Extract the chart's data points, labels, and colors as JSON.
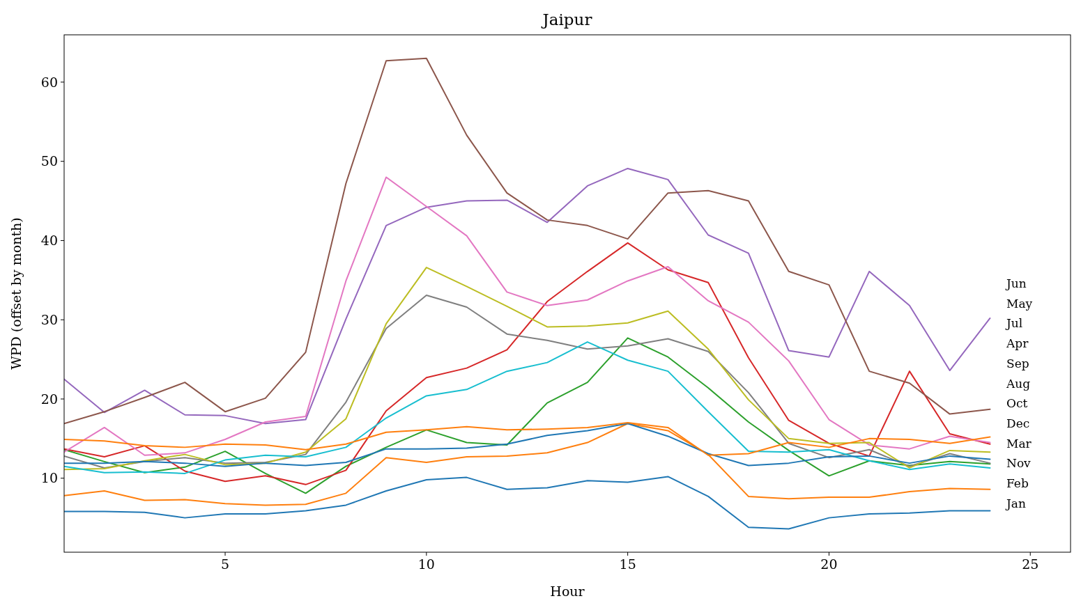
{
  "chart_data": {
    "type": "line",
    "title": "Jaipur",
    "xlabel": "Hour",
    "ylabel": "WPD (offset by month)",
    "x": [
      1,
      2,
      3,
      4,
      5,
      6,
      7,
      8,
      9,
      10,
      11,
      12,
      13,
      14,
      15,
      16,
      17,
      18,
      19,
      20,
      21,
      22,
      23,
      24
    ],
    "xlim": [
      1,
      26
    ],
    "xticks": [
      5,
      10,
      15,
      20,
      25
    ],
    "ylim": [
      0.66,
      65.97
    ],
    "yticks": [
      10,
      20,
      30,
      40,
      50,
      60
    ],
    "series": [
      {
        "color": "#1f77b4",
        "values": [
          5.8,
          5.8,
          5.7,
          5.0,
          5.5,
          5.5,
          5.9,
          6.6,
          8.4,
          9.8,
          10.1,
          8.6,
          8.8,
          9.7,
          9.5,
          10.2,
          7.7,
          3.8,
          3.6,
          5.0,
          5.5,
          5.6,
          5.9,
          5.9
        ]
      },
      {
        "color": "#ff7f0e",
        "values": [
          7.8,
          8.4,
          7.2,
          7.3,
          6.8,
          6.6,
          6.7,
          8.1,
          12.6,
          12.0,
          12.7,
          12.8,
          13.2,
          14.5,
          16.9,
          16.0,
          13.0,
          7.7,
          7.4,
          7.6,
          7.6,
          8.3,
          8.7,
          8.6
        ]
      },
      {
        "color": "#2ca02c",
        "values": [
          13.6,
          12.1,
          10.7,
          11.4,
          13.4,
          10.6,
          8.1,
          11.5,
          13.9,
          16.1,
          14.5,
          14.2,
          19.5,
          22.1,
          27.7,
          25.3,
          21.4,
          17.1,
          13.5,
          10.3,
          12.2,
          11.6,
          12.1,
          11.8
        ]
      },
      {
        "color": "#d62728",
        "values": [
          13.7,
          12.7,
          14.1,
          10.9,
          9.6,
          10.3,
          9.2,
          11.0,
          18.5,
          22.7,
          23.9,
          26.2,
          32.3,
          36.1,
          39.7,
          36.3,
          34.7,
          25.2,
          17.3,
          14.4,
          12.8,
          23.5,
          15.6,
          14.3
        ]
      },
      {
        "color": "#9467bd",
        "values": [
          22.5,
          18.3,
          21.1,
          18.0,
          17.9,
          16.9,
          17.4,
          30.1,
          41.9,
          44.2,
          45.0,
          45.1,
          42.3,
          46.9,
          49.1,
          47.7,
          40.7,
          38.4,
          26.1,
          25.3,
          36.1,
          31.8,
          23.6,
          30.2
        ]
      },
      {
        "color": "#8c564b",
        "values": [
          16.9,
          18.4,
          20.2,
          22.1,
          18.4,
          20.1,
          25.9,
          47.2,
          62.7,
          63.0,
          53.3,
          46.0,
          42.6,
          41.9,
          40.2,
          46.0,
          46.3,
          45.0,
          36.1,
          34.4,
          23.5,
          22.0,
          18.1,
          18.7
        ]
      },
      {
        "color": "#e377c2",
        "values": [
          13.3,
          16.4,
          12.9,
          13.2,
          14.9,
          17.1,
          17.8,
          34.9,
          48.0,
          44.3,
          40.6,
          33.5,
          31.8,
          32.5,
          34.9,
          36.7,
          32.4,
          29.7,
          24.8,
          17.4,
          14.2,
          13.7,
          15.3,
          14.5
        ]
      },
      {
        "color": "#7f7f7f",
        "values": [
          12.8,
          11.3,
          12.1,
          12.6,
          11.9,
          12.0,
          13.0,
          19.6,
          28.9,
          33.1,
          31.6,
          28.2,
          27.4,
          26.3,
          26.7,
          27.6,
          26.0,
          20.8,
          14.4,
          12.6,
          13.6,
          11.5,
          13.1,
          11.9
        ]
      },
      {
        "color": "#bcbd22",
        "values": [
          11.1,
          11.2,
          12.2,
          13.0,
          11.7,
          11.9,
          13.3,
          17.5,
          29.5,
          36.6,
          34.2,
          31.7,
          29.1,
          29.2,
          29.6,
          31.1,
          26.3,
          19.9,
          15.0,
          14.4,
          14.5,
          11.3,
          13.5,
          13.3
        ]
      },
      {
        "color": "#17becf",
        "values": [
          11.5,
          10.7,
          10.8,
          10.6,
          12.3,
          12.9,
          12.7,
          13.9,
          17.6,
          20.4,
          21.2,
          23.5,
          24.6,
          27.2,
          24.9,
          23.5,
          18.4,
          13.4,
          13.3,
          13.6,
          12.2,
          11.1,
          11.8,
          11.3
        ]
      },
      {
        "color": "#1f77b4",
        "values": [
          11.9,
          11.9,
          12.1,
          11.9,
          11.5,
          11.9,
          11.6,
          12.0,
          13.7,
          13.7,
          13.8,
          14.3,
          15.4,
          16.0,
          16.9,
          15.3,
          13.1,
          11.6,
          11.9,
          12.7,
          12.8,
          11.9,
          12.8,
          12.4
        ]
      },
      {
        "color": "#ff7f0e",
        "values": [
          14.9,
          14.7,
          14.1,
          13.9,
          14.3,
          14.2,
          13.6,
          14.3,
          15.8,
          16.1,
          16.5,
          16.1,
          16.2,
          16.4,
          17.0,
          16.4,
          12.9,
          13.1,
          14.5,
          13.9,
          15.0,
          14.9,
          14.4,
          15.2
        ]
      }
    ],
    "annotations": [
      "Jun",
      "May",
      "Jul",
      "Apr",
      "Sep",
      "Aug",
      "Oct",
      "Dec",
      "Mar",
      "Nov",
      "Feb",
      "Jan"
    ]
  }
}
